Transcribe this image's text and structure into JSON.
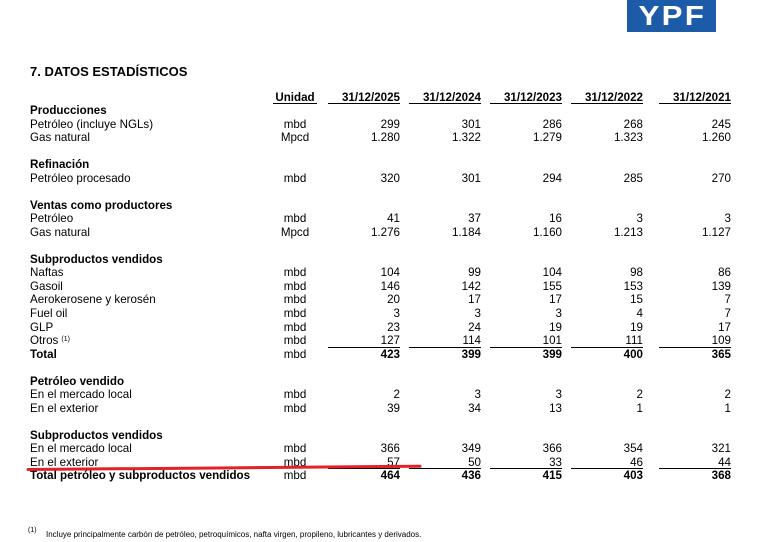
{
  "logo": {
    "text": "YPF"
  },
  "colors": {
    "logo_background": "#1b5ba8",
    "logo_text": "#ffffff",
    "annotation_line": "#e3202b"
  },
  "section_title": "7. DATOS ESTADÍSTICOS",
  "table": {
    "unit_header": "Unidad",
    "period_headers": [
      "31/12/2025",
      "31/12/2024",
      "31/12/2023",
      "31/12/2022",
      "31/12/2021"
    ],
    "groups": [
      {
        "title": "Producciones",
        "rows": [
          {
            "label": "Petróleo (incluye NGLs)",
            "unit": "mbd",
            "values": [
              "299",
              "301",
              "286",
              "268",
              "245"
            ]
          },
          {
            "label": "Gas natural",
            "unit": "Mpcd",
            "values": [
              "1.280",
              "1.322",
              "1.279",
              "1.323",
              "1.260"
            ]
          }
        ]
      },
      {
        "title": "Refinación",
        "rows": [
          {
            "label": "Petróleo procesado",
            "unit": "mbd",
            "values": [
              "320",
              "301",
              "294",
              "285",
              "270"
            ]
          }
        ]
      },
      {
        "title": "Ventas como productores",
        "rows": [
          {
            "label": "Petróleo",
            "unit": "mbd",
            "values": [
              "41",
              "37",
              "16",
              "3",
              "3"
            ]
          },
          {
            "label": "Gas natural",
            "unit": "Mpcd",
            "values": [
              "1.276",
              "1.184",
              "1.160",
              "1.213",
              "1.127"
            ]
          }
        ]
      },
      {
        "title": "Subproductos vendidos",
        "rows": [
          {
            "label": "Naftas",
            "unit": "mbd",
            "values": [
              "104",
              "99",
              "104",
              "98",
              "86"
            ]
          },
          {
            "label": "Gasoil",
            "unit": "mbd",
            "values": [
              "146",
              "142",
              "155",
              "153",
              "139"
            ]
          },
          {
            "label": "Aerokerosene y kerosén",
            "unit": "mbd",
            "values": [
              "20",
              "17",
              "17",
              "15",
              "7"
            ]
          },
          {
            "label": "Fuel oil",
            "unit": "mbd",
            "values": [
              "3",
              "3",
              "3",
              "4",
              "7"
            ]
          },
          {
            "label": "GLP",
            "unit": "mbd",
            "values": [
              "23",
              "24",
              "19",
              "19",
              "17"
            ]
          },
          {
            "label": "Otros",
            "note": "(1)",
            "unit": "mbd",
            "values": [
              "127",
              "114",
              "101",
              "111",
              "109"
            ]
          },
          {
            "label": "Total",
            "unit": "mbd",
            "values": [
              "423",
              "399",
              "399",
              "400",
              "365"
            ],
            "is_total": true
          }
        ]
      },
      {
        "title": "Petróleo vendido",
        "rows": [
          {
            "label": "En el mercado local",
            "unit": "mbd",
            "values": [
              "2",
              "3",
              "3",
              "2",
              "2"
            ]
          },
          {
            "label": "En el exterior",
            "unit": "mbd",
            "values": [
              "39",
              "34",
              "13",
              "1",
              "1"
            ]
          }
        ]
      },
      {
        "title": "Subproductos vendidos",
        "rows": [
          {
            "label": "En el mercado local",
            "unit": "mbd",
            "values": [
              "366",
              "349",
              "366",
              "354",
              "321"
            ]
          },
          {
            "label": "En el exterior",
            "unit": "mbd",
            "values": [
              "57",
              "50",
              "33",
              "46",
              "44"
            ]
          },
          {
            "label": "Total petróleo y subproductos vendidos",
            "unit": "mbd",
            "values": [
              "464",
              "436",
              "415",
              "403",
              "368"
            ],
            "is_total": true
          }
        ]
      }
    ]
  },
  "footnote": {
    "marker": "(1)",
    "text": "Incluye principalmente carbón de petróleo, petroquímicos, nafta virgen, propileno, lubricantes y derivados."
  }
}
